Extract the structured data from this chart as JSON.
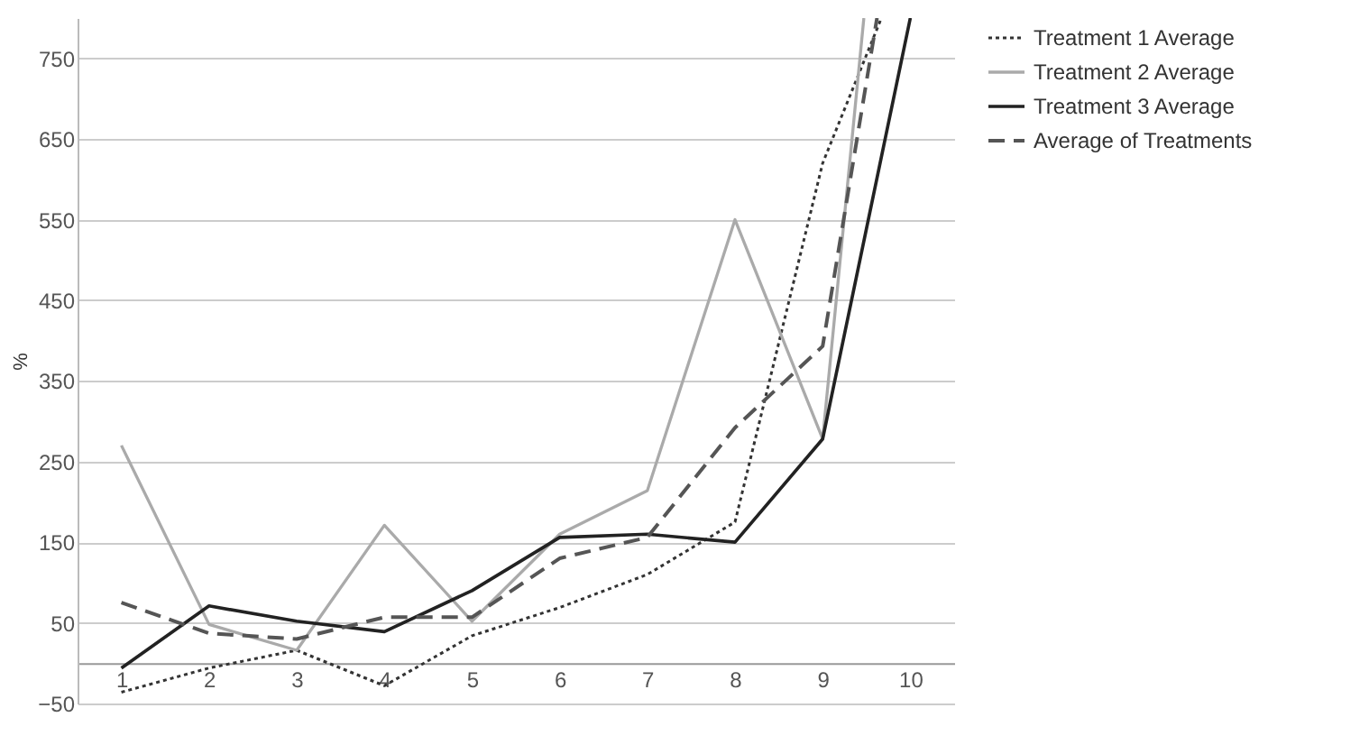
{
  "chart_data": {
    "type": "line",
    "ylabel": "%",
    "xlim": [
      0.5,
      10.5
    ],
    "xticks": [
      1,
      2,
      3,
      4,
      5,
      6,
      7,
      8,
      9,
      10
    ],
    "ylim": [
      -50,
      800
    ],
    "yticks": [
      -50,
      50,
      150,
      250,
      350,
      450,
      550,
      650,
      750
    ],
    "grid": "y",
    "legend": "right",
    "series": [
      {
        "name": "Treatment 1 Average",
        "color": "#333333",
        "line_style": "dotted",
        "x": [
          1,
          2,
          3,
          4,
          5,
          6,
          7,
          8,
          9,
          9.67
        ],
        "values": [
          -36,
          -6,
          16,
          -28,
          34,
          69,
          110,
          175,
          620,
          800
        ]
      },
      {
        "name": "Treatment 2 Average",
        "color": "#aaaaaa",
        "line_style": "solid",
        "x": [
          1,
          2,
          3,
          4,
          5,
          6,
          7,
          8,
          9,
          9.47
        ],
        "values": [
          270,
          48,
          16,
          171,
          52,
          160,
          214,
          550,
          278,
          800
        ]
      },
      {
        "name": "Treatment 3  Average",
        "color": "#222222",
        "line_style": "solid",
        "x": [
          1,
          2,
          3,
          4,
          5,
          6,
          7,
          8,
          9,
          10
        ],
        "values": [
          -6,
          71,
          52,
          39,
          90,
          156,
          160,
          150,
          278,
          800
        ]
      },
      {
        "name": "Average of Treatments",
        "color": "#555555",
        "line_style": "dashed",
        "x": [
          1,
          2,
          3,
          4,
          5,
          6,
          7,
          8,
          9,
          9.62
        ],
        "values": [
          75,
          37,
          30,
          57,
          57,
          130,
          156,
          292,
          393,
          800
        ]
      }
    ]
  }
}
